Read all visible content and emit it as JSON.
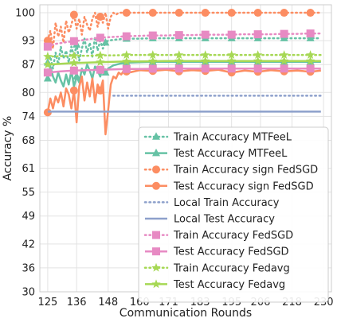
{
  "chart_data": {
    "type": "line",
    "xlabel": "Communication Rounds",
    "ylabel": "Accuracy %",
    "xlim": [
      122,
      233
    ],
    "ylim": [
      30,
      102
    ],
    "x_ticks": [
      125,
      136,
      148,
      160,
      171,
      183,
      195,
      206,
      218,
      230
    ],
    "y_ticks": [
      30,
      36,
      42,
      49,
      55,
      61,
      68,
      74,
      80,
      87,
      93,
      100
    ],
    "grid": true,
    "legend_position": "lower-right",
    "series": [
      {
        "name": "Train Accuracy MTFeeL",
        "color": "#66c2a5",
        "line_style": "dotted",
        "marker": "triangle",
        "x": [
          125,
          126,
          127,
          128,
          129,
          130,
          131,
          132,
          133,
          134,
          135,
          136,
          137,
          138,
          139,
          140,
          141,
          142,
          143,
          144,
          145,
          146,
          147,
          148,
          150,
          153,
          156,
          160,
          165,
          170,
          175,
          180,
          185,
          190,
          195,
          200,
          205,
          210,
          215,
          220,
          225,
          229
        ],
        "y": [
          87.5,
          89.0,
          86.0,
          90.0,
          87.0,
          91.5,
          88.5,
          90.5,
          87.5,
          91.5,
          89.0,
          92.0,
          88.0,
          91.0,
          93.5,
          90.0,
          92.5,
          89.0,
          94.0,
          90.5,
          93.0,
          91.0,
          92.5,
          93.0,
          93.2,
          93.4,
          93.5,
          93.5,
          93.6,
          93.6,
          93.6,
          93.6,
          93.6,
          93.6,
          93.6,
          93.6,
          93.6,
          93.6,
          93.6,
          93.6,
          93.6,
          93.6
        ],
        "marker_x": [
          125,
          136,
          147,
          155,
          165,
          175,
          185,
          195,
          205,
          215,
          225
        ]
      },
      {
        "name": "Test Accuracy MTFeeL",
        "color": "#66c2a5",
        "line_style": "solid",
        "marker": "triangle",
        "x": [
          125,
          126,
          127,
          128,
          129,
          130,
          131,
          132,
          133,
          134,
          135,
          136,
          137,
          138,
          139,
          140,
          141,
          142,
          143,
          144,
          145,
          146,
          147,
          148,
          150,
          153,
          156,
          160,
          165,
          170,
          175,
          180,
          185,
          190,
          195,
          200,
          205,
          210,
          215,
          220,
          225,
          229
        ],
        "y": [
          83.5,
          86.5,
          84.0,
          82.5,
          85.0,
          83.0,
          81.5,
          84.5,
          82.0,
          85.5,
          81.5,
          84.0,
          82.5,
          86.0,
          84.5,
          87.0,
          85.5,
          83.5,
          86.5,
          85.5,
          84.0,
          86.5,
          85.0,
          86.0,
          86.8,
          87.3,
          87.5,
          87.6,
          87.7,
          87.7,
          87.7,
          87.7,
          87.7,
          87.7,
          87.7,
          87.7,
          87.7,
          87.7,
          87.7,
          87.7,
          87.7,
          87.7
        ],
        "marker_x": [
          125,
          136,
          147,
          155,
          165,
          175,
          185,
          195,
          205,
          215,
          225
        ]
      },
      {
        "name": "Train Accuracy sign FedSGD",
        "color": "#fc8d62",
        "line_style": "dotted",
        "marker": "circle",
        "x": [
          125,
          126,
          127,
          128,
          129,
          130,
          131,
          132,
          133,
          134,
          135,
          136,
          137,
          138,
          139,
          140,
          141,
          142,
          143,
          144,
          145,
          146,
          147,
          148,
          149,
          150,
          151,
          152,
          153,
          155,
          160,
          165,
          170,
          175,
          180,
          185,
          190,
          195,
          200,
          205,
          210,
          215,
          220,
          225,
          229
        ],
        "y": [
          93.0,
          95.5,
          91.0,
          97.5,
          94.0,
          96.5,
          92.5,
          98.0,
          95.0,
          97.0,
          99.5,
          96.0,
          98.5,
          94.5,
          99.0,
          97.0,
          95.5,
          98.5,
          100.0,
          96.5,
          99.0,
          97.5,
          100.0,
          96.0,
          99.0,
          100.0,
          99.5,
          100.0,
          100.0,
          100.0,
          100.0,
          100.0,
          100.0,
          100.0,
          100.0,
          100.0,
          100.0,
          100.0,
          100.0,
          100.0,
          100.0,
          100.0,
          100.0,
          100.0,
          100.0
        ],
        "marker_x": [
          125,
          135,
          145,
          155,
          165,
          175,
          185,
          195,
          205,
          215,
          225
        ]
      },
      {
        "name": "Test Accuracy sign FedSGD",
        "color": "#fc8d62",
        "line_style": "solid",
        "marker": "circle",
        "x": [
          125,
          126,
          127,
          128,
          129,
          130,
          131,
          132,
          133,
          134,
          135,
          136,
          137,
          138,
          139,
          140,
          141,
          142,
          143,
          144,
          145,
          146,
          147,
          148,
          149,
          150,
          151,
          152,
          153,
          154,
          156,
          160,
          165,
          170,
          175,
          180,
          185,
          190,
          195,
          200,
          205,
          210,
          215,
          220,
          225,
          229
        ],
        "y": [
          75.0,
          78.5,
          76.0,
          79.0,
          77.5,
          80.0,
          76.5,
          81.0,
          79.5,
          76.0,
          80.5,
          72.5,
          81.5,
          84.0,
          78.0,
          82.5,
          79.0,
          83.5,
          77.5,
          82.0,
          80.5,
          83.0,
          69.5,
          75.5,
          82.0,
          84.0,
          83.5,
          85.0,
          84.5,
          85.5,
          85.0,
          85.6,
          85.4,
          85.7,
          85.3,
          85.6,
          85.4,
          85.7,
          85.0,
          85.5,
          85.2,
          85.6,
          85.3,
          85.5,
          85.2,
          85.5
        ],
        "marker_x": [
          125,
          135,
          145,
          155,
          165,
          175,
          185,
          195,
          205,
          215,
          225
        ]
      },
      {
        "name": "Local Train Accuracy",
        "color": "#8da0cb",
        "line_style": "dotted",
        "marker": "none",
        "x": [
          150,
          229
        ],
        "y": [
          79.2,
          79.2
        ],
        "marker_x": []
      },
      {
        "name": "Local Test Accuracy",
        "color": "#8da0cb",
        "line_style": "solid",
        "marker": "none",
        "x": [
          125,
          229
        ],
        "y": [
          75.2,
          75.2
        ],
        "marker_x": []
      },
      {
        "name": "Train Accuracy FedSGD",
        "color": "#e78ac3",
        "line_style": "dotted",
        "marker": "square",
        "x": [
          125,
          128,
          131,
          134,
          137,
          140,
          143,
          146,
          149,
          152,
          155,
          160,
          165,
          170,
          175,
          180,
          185,
          190,
          195,
          200,
          205,
          210,
          215,
          220,
          225,
          229
        ],
        "y": [
          91.5,
          92.2,
          92.5,
          92.8,
          93.0,
          93.3,
          93.6,
          93.8,
          93.9,
          94.0,
          94.1,
          94.2,
          94.3,
          94.3,
          94.4,
          94.4,
          94.5,
          94.5,
          94.5,
          94.6,
          94.6,
          94.6,
          94.7,
          94.7,
          94.8,
          94.8
        ],
        "marker_x": [
          125,
          135,
          145,
          155,
          165,
          175,
          185,
          195,
          205,
          215,
          225
        ]
      },
      {
        "name": "Test Accuracy FedSGD",
        "color": "#e78ac3",
        "line_style": "solid",
        "marker": "square",
        "x": [
          125,
          130,
          135,
          140,
          145,
          150,
          155,
          160,
          170,
          180,
          190,
          200,
          210,
          220,
          229
        ],
        "y": [
          85.0,
          85.3,
          85.5,
          85.6,
          85.7,
          85.8,
          85.9,
          85.9,
          86.0,
          86.0,
          86.0,
          86.0,
          86.0,
          86.0,
          86.0
        ],
        "marker_x": [
          125,
          135,
          145,
          155,
          165,
          175,
          185,
          195,
          205,
          215,
          225
        ]
      },
      {
        "name": "Train Accuracy Fedavg",
        "color": "#a6d854",
        "line_style": "dotted",
        "marker": "star",
        "x": [
          125,
          130,
          135,
          140,
          145,
          150,
          155,
          160,
          170,
          180,
          190,
          200,
          210,
          220,
          229
        ],
        "y": [
          89.0,
          89.1,
          89.2,
          89.2,
          89.3,
          89.3,
          89.4,
          89.4,
          89.4,
          89.4,
          89.4,
          89.4,
          89.4,
          89.4,
          89.4
        ],
        "marker_x": [
          125,
          135,
          145,
          155,
          165,
          175,
          185,
          195,
          205,
          215,
          225
        ]
      },
      {
        "name": "Test Accuracy Fedavg",
        "color": "#a6d854",
        "line_style": "solid",
        "marker": "star",
        "x": [
          125,
          130,
          135,
          140,
          145,
          150,
          155,
          160,
          170,
          180,
          190,
          200,
          210,
          220,
          229
        ],
        "y": [
          87.0,
          87.2,
          87.4,
          87.5,
          87.6,
          87.7,
          87.8,
          87.8,
          87.9,
          87.9,
          87.9,
          87.9,
          87.9,
          87.9,
          87.9
        ],
        "marker_x": [
          125,
          135,
          145,
          155,
          165,
          175,
          185,
          195,
          205,
          215,
          225
        ]
      }
    ]
  }
}
